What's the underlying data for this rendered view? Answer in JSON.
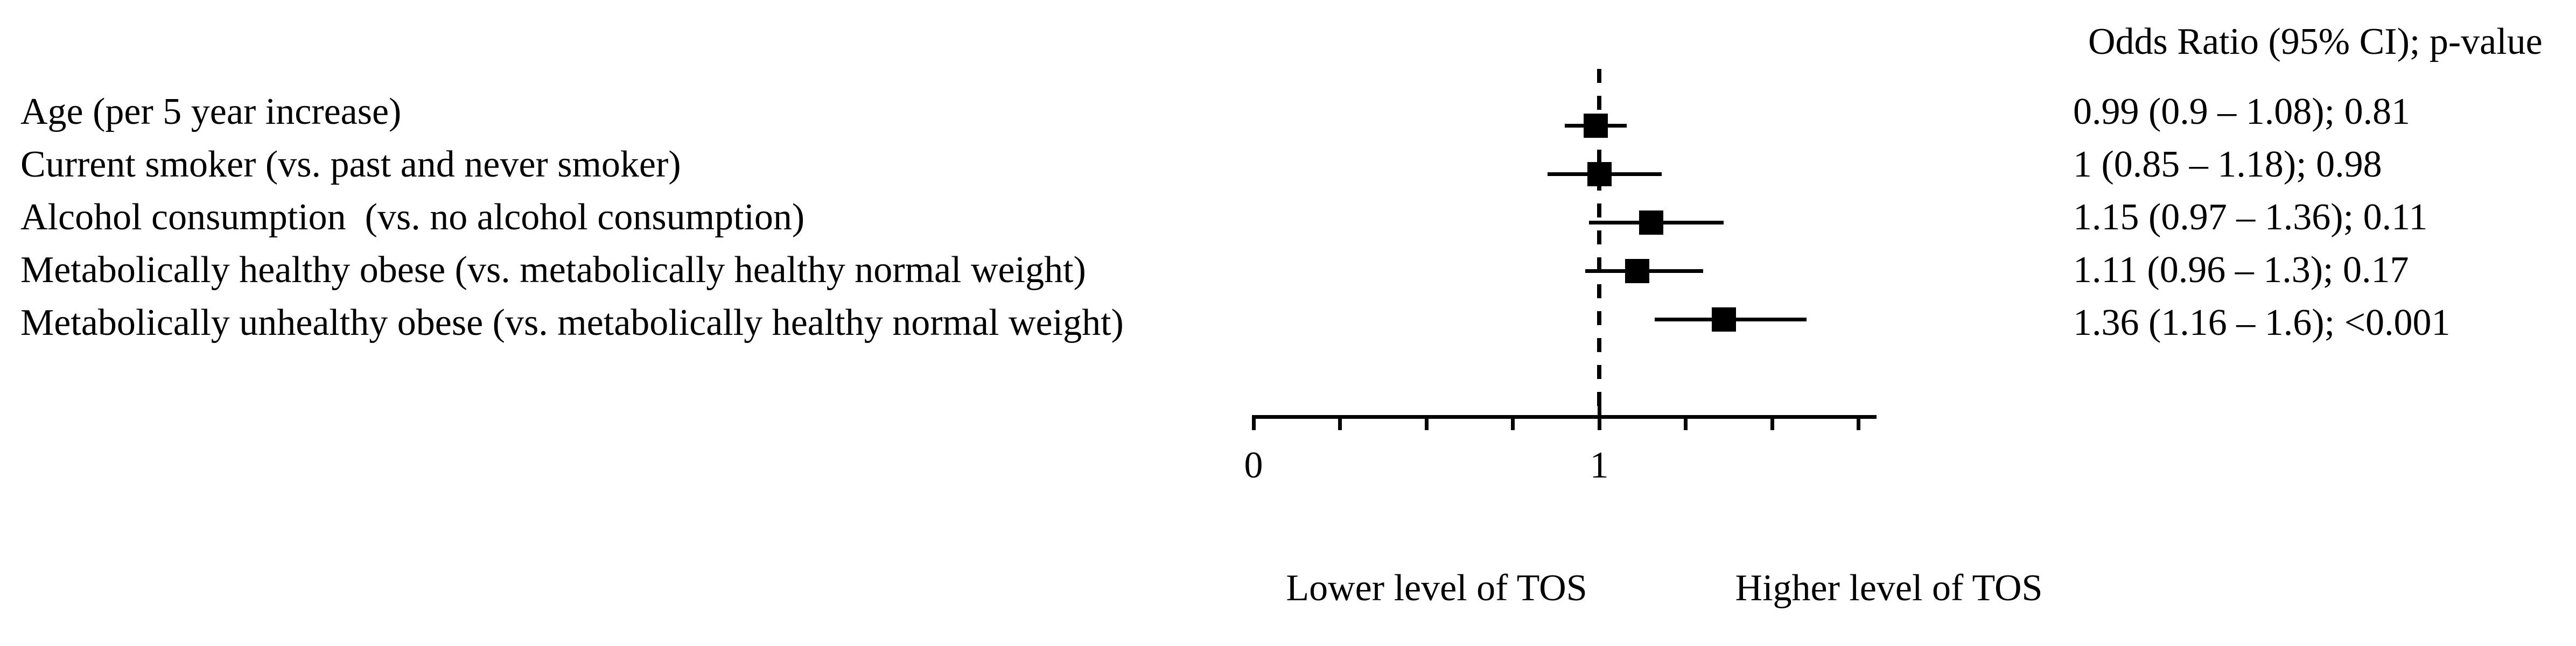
{
  "chart_data": {
    "type": "scatter",
    "subtype": "forest-plot",
    "column_header": "Odds Ratio (95% CI); p-value",
    "rows": [
      {
        "label": "Age (per 5 year increase)",
        "or": 0.99,
        "ci_low": 0.9,
        "ci_high": 1.08,
        "p_value": "0.81",
        "display": "0.99 (0.9 – 1.08); 0.81"
      },
      {
        "label": "Current smoker (vs. past and never smoker)",
        "or": 1,
        "ci_low": 0.85,
        "ci_high": 1.18,
        "p_value": "0.98",
        "display": "1 (0.85 – 1.18); 0.98"
      },
      {
        "label": "Alcohol consumption  (vs. no alcohol consumption)",
        "or": 1.15,
        "ci_low": 0.97,
        "ci_high": 1.36,
        "p_value": "0.11",
        "display": "1.15 (0.97 – 1.36); 0.11"
      },
      {
        "label": "Metabolically healthy obese (vs. metabolically healthy normal weight)",
        "or": 1.11,
        "ci_low": 0.96,
        "ci_high": 1.3,
        "p_value": "0.17",
        "display": "1.11 (0.96 – 1.3); 0.17"
      },
      {
        "label": "Metabolically unhealthy obese (vs. metabolically healthy normal weight)",
        "or": 1.36,
        "ci_low": 1.16,
        "ci_high": 1.6,
        "p_value": "<0.001",
        "display": "1.36 (1.16 – 1.6); <0.001"
      }
    ],
    "x_axis": {
      "range": [
        0,
        1.8
      ],
      "ticks": [
        0,
        0.25,
        0.5,
        0.75,
        1,
        1.25,
        1.5,
        1.75
      ],
      "labeled_ticks": [
        {
          "value": 0,
          "label": "0"
        },
        {
          "value": 1,
          "label": "1"
        }
      ],
      "reference_line": 1,
      "reference_line_style": "dashed"
    },
    "annotations": {
      "left_of_one": "Lower level of TOS",
      "right_of_one": "Higher level of TOS"
    },
    "marker": {
      "shape": "square",
      "color": "#000000"
    },
    "colors": {
      "foreground": "#000000",
      "background": "#ffffff"
    },
    "grid": false,
    "legend": false
  }
}
